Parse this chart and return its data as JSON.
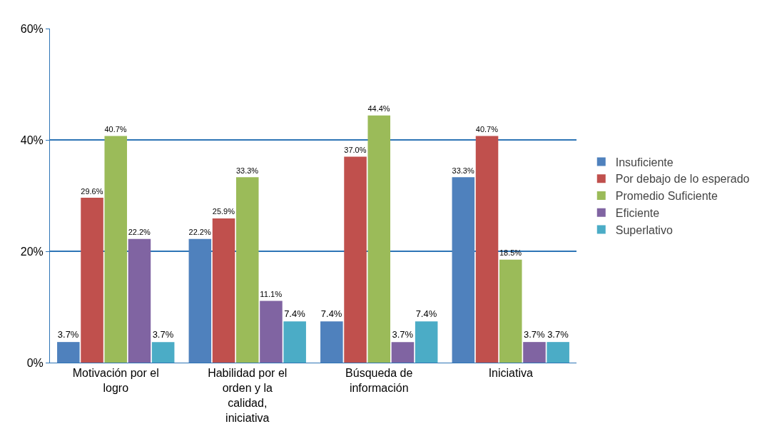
{
  "chart_data": {
    "type": "bar",
    "categories": [
      "Motivación por el logro",
      "Habilidad por el orden y la calidad, iniciativa",
      "Búsqueda de información",
      "Iniciativa"
    ],
    "series": [
      {
        "name": "Insuficiente",
        "color": "#4f81bd",
        "values": [
          3.7,
          22.2,
          7.4,
          33.3
        ],
        "value_labels": [
          "3.7%",
          "22.2%",
          "7.4%",
          "33.3%"
        ]
      },
      {
        "name": "Por debajo de lo esperado",
        "color": "#c0504d",
        "values": [
          29.6,
          25.9,
          37.0,
          40.7
        ],
        "value_labels": [
          "29.6%",
          "25.9%",
          "37.0%",
          "40.7%"
        ]
      },
      {
        "name": "Promedio Suficiente",
        "color": "#9bbb59",
        "values": [
          40.7,
          33.3,
          44.4,
          18.5
        ],
        "value_labels": [
          "40.7%",
          "33.3%",
          "44.4%",
          "18.5%"
        ]
      },
      {
        "name": "Eficiente",
        "color": "#8064a2",
        "values": [
          22.2,
          11.1,
          3.7,
          3.7
        ],
        "value_labels": [
          "22.2%",
          "11.1%",
          "3.7%",
          "3.7%"
        ]
      },
      {
        "name": "Superlativo",
        "color": "#4bacc6",
        "values": [
          3.7,
          7.4,
          7.4,
          3.7
        ],
        "value_labels": [
          "3.7%",
          "7.4%",
          "7.4%",
          "3.7%"
        ]
      }
    ],
    "ylim": [
      0,
      60
    ],
    "yticks": [
      {
        "value": 0,
        "label": "0%"
      },
      {
        "value": 20,
        "label": "20%"
      },
      {
        "value": 40,
        "label": "40%"
      },
      {
        "value": 60,
        "label": "60%"
      }
    ],
    "grid": "y",
    "legend": "right"
  }
}
